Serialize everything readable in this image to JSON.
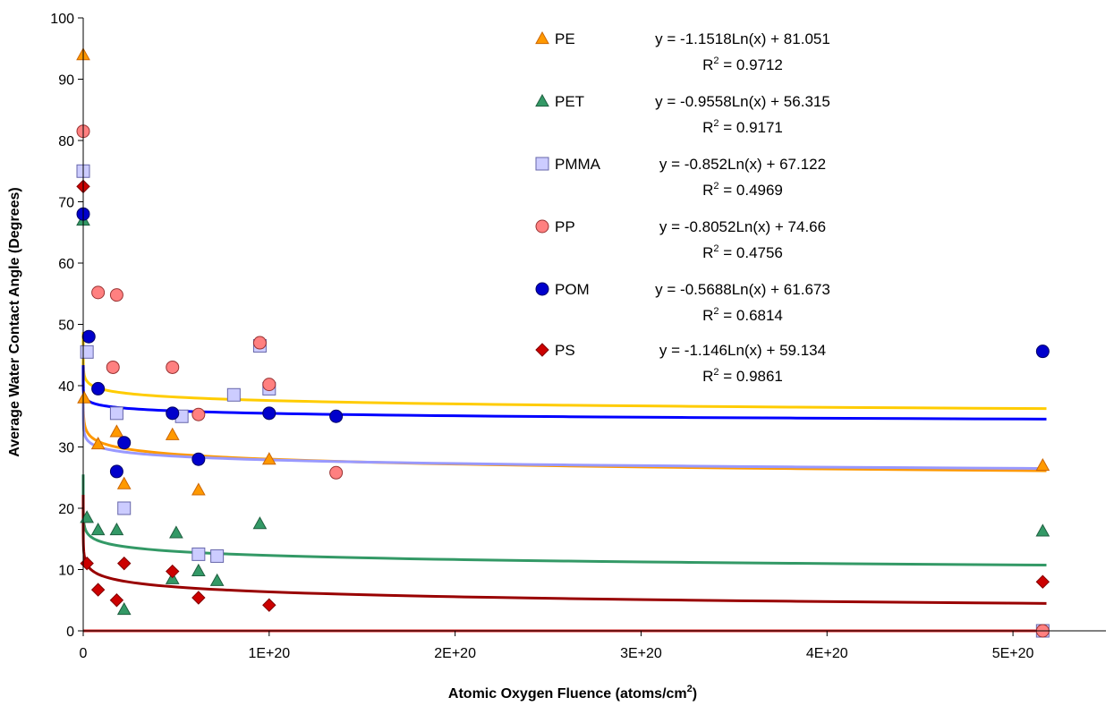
{
  "chart_data": {
    "type": "scatter",
    "title": "",
    "xlabel": "Atomic Oxygen Fluence (atoms/cm",
    "xlabel_sup": "2",
    "xlabel_tail": ")",
    "ylabel": "Average Water Contact Angle (Degrees)",
    "xlim": [
      0,
      5.5e+20
    ],
    "ylim": [
      0,
      100
    ],
    "x_ticks": [
      0,
      1e+20,
      2e+20,
      3e+20,
      4e+20,
      5e+20
    ],
    "x_tick_labels": [
      "0",
      "1E+20",
      "2E+20",
      "3E+20",
      "4E+20",
      "5E+20"
    ],
    "y_ticks": [
      0,
      10,
      20,
      30,
      40,
      50,
      60,
      70,
      80,
      90,
      100
    ],
    "y_tick_labels": [
      "0",
      "10",
      "20",
      "30",
      "40",
      "50",
      "60",
      "70",
      "80",
      "90",
      "100"
    ],
    "grid": false,
    "legend_position": "top-right",
    "series": [
      {
        "name": "PE",
        "marker": "triangle",
        "color": "#FF9900",
        "edge": "#CC6600",
        "trend_color": "#FF9900",
        "trend": {
          "a": -1.1518,
          "b": 81.051
        },
        "equation": "y = -1.1518Ln(x) + 81.051",
        "r2_label": "R",
        "r2_value": " = 0.9712",
        "points": [
          [
            0,
            94
          ],
          [
            5e+17,
            38
          ],
          [
            8e+18,
            30.5
          ],
          [
            1.8e+19,
            32.5
          ],
          [
            2.2e+19,
            24
          ],
          [
            4.8e+19,
            32
          ],
          [
            6.2e+19,
            23
          ],
          [
            1e+20,
            28
          ],
          [
            5.16e+20,
            27
          ]
        ]
      },
      {
        "name": "PET",
        "marker": "triangle",
        "color": "#339966",
        "edge": "#1F5F40",
        "trend_color": "#339966",
        "trend": {
          "a": -0.9558,
          "b": 56.315
        },
        "equation": "y = -0.9558Ln(x) + 56.315",
        "r2_label": "R",
        "r2_value": " = 0.9171",
        "points": [
          [
            0,
            67
          ],
          [
            2e+18,
            18.5
          ],
          [
            8e+18,
            16.5
          ],
          [
            1.8e+19,
            16.5
          ],
          [
            2.2e+19,
            3.5
          ],
          [
            4.8e+19,
            8.5
          ],
          [
            5e+19,
            16
          ],
          [
            6.2e+19,
            9.8
          ],
          [
            7.2e+19,
            8.2
          ],
          [
            9.5e+19,
            17.5
          ],
          [
            5.16e+20,
            16.3
          ]
        ]
      },
      {
        "name": "PMMA",
        "marker": "square",
        "color": "#CCCCFF",
        "edge": "#6666AA",
        "trend_color": "#9999FF",
        "trend": {
          "a": -0.852,
          "b": 67.122
        },
        "equation": "y = -0.852Ln(x) + 67.122",
        "r2_label": "R",
        "r2_value": " = 0.4969",
        "points": [
          [
            0,
            75
          ],
          [
            2e+18,
            45.5
          ],
          [
            1.8e+19,
            35.5
          ],
          [
            2.2e+19,
            20
          ],
          [
            5.3e+19,
            35
          ],
          [
            6.2e+19,
            12.5
          ],
          [
            7.2e+19,
            12.2
          ],
          [
            8.1e+19,
            38.5
          ],
          [
            9.5e+19,
            46.5
          ],
          [
            1e+20,
            39.5
          ],
          [
            5.16e+20,
            0
          ]
        ]
      },
      {
        "name": "PP",
        "marker": "circle",
        "color": "#FF8080",
        "edge": "#993333",
        "trend_color": "#FFCC00",
        "trend": {
          "a": -0.8052,
          "b": 74.66
        },
        "equation": "y = -0.8052Ln(x) + 74.66",
        "r2_label": "R",
        "r2_value": " = 0.4756",
        "points": [
          [
            0,
            81.5
          ],
          [
            8e+18,
            55.2
          ],
          [
            1.6e+19,
            43
          ],
          [
            1.8e+19,
            54.8
          ],
          [
            4.8e+19,
            43
          ],
          [
            6.2e+19,
            35.3
          ],
          [
            9.5e+19,
            47
          ],
          [
            1e+20,
            40.2
          ],
          [
            1.36e+20,
            25.8
          ],
          [
            5.16e+20,
            0
          ]
        ]
      },
      {
        "name": "POM",
        "marker": "circle",
        "color": "#0000CC",
        "edge": "#000066",
        "trend_color": "#0000FF",
        "trend": {
          "a": -0.5688,
          "b": 61.673
        },
        "equation": "y = -0.5688Ln(x) + 61.673",
        "r2_label": "R",
        "r2_value": " = 0.6814",
        "points": [
          [
            0,
            68
          ],
          [
            3e+18,
            48
          ],
          [
            8e+18,
            39.5
          ],
          [
            1.8e+19,
            26
          ],
          [
            2.2e+19,
            30.7
          ],
          [
            4.8e+19,
            35.5
          ],
          [
            6.2e+19,
            28
          ],
          [
            1e+20,
            35.5
          ],
          [
            1.36e+20,
            35
          ],
          [
            5.16e+20,
            45.6
          ]
        ]
      },
      {
        "name": "PS",
        "marker": "diamond",
        "color": "#CC0000",
        "edge": "#800000",
        "trend_color": "#990000",
        "trend": {
          "a": -1.146,
          "b": 59.134
        },
        "equation": "y = -1.146Ln(x) + 59.134",
        "r2_label": "R",
        "r2_value": " = 0.9861",
        "points": [
          [
            0,
            72.5
          ],
          [
            2e+18,
            11
          ],
          [
            8e+18,
            6.7
          ],
          [
            1.8e+19,
            5
          ],
          [
            2.2e+19,
            11
          ],
          [
            4.8e+19,
            9.7
          ],
          [
            6.2e+19,
            5.4
          ],
          [
            1e+20,
            4.2
          ],
          [
            5.16e+20,
            8
          ]
        ]
      }
    ],
    "trend_extra_colors": {
      "PS_low": "#DD2222"
    },
    "ps_low_trend": {
      "a": -1.146,
      "b": 59.134
    }
  }
}
